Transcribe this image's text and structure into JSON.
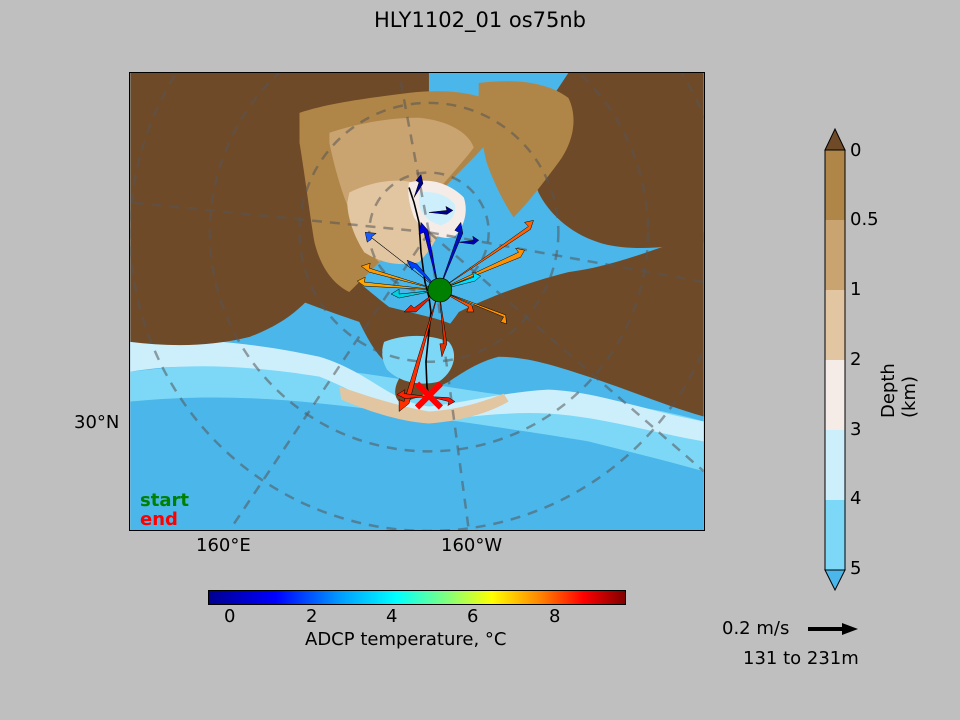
{
  "title": "HLY1102_01 os75nb",
  "map": {
    "lat_label": "30°N",
    "lon_labels": [
      "160°E",
      "160°W"
    ],
    "start_label": "start",
    "end_label": "end",
    "start_marker": "green-circle",
    "end_marker": "red-x",
    "colors": {
      "deep_land": "#6f4a28",
      "land_mid": "#b08648",
      "land_light": "#c9a370",
      "land_pale": "#e2c6a1",
      "shelf": "#f5ece8",
      "shallow": "#cdeffc",
      "mid_ocean": "#7dd8f7",
      "deep_ocean": "#4ab6ea"
    }
  },
  "temperature_colorbar": {
    "label": "ADCP temperature, °C",
    "ticks": [
      "0",
      "2",
      "4",
      "6",
      "8"
    ],
    "range": [
      -0.5,
      9.5
    ]
  },
  "depth_colorbar": {
    "label": "Depth (km)",
    "ticks": [
      "0",
      "0.5",
      "1",
      "2",
      "3",
      "4",
      "5"
    ],
    "colors": [
      "#b08648",
      "#c9a370",
      "#e2c6a1",
      "#f5ece8",
      "#cdeffc",
      "#7dd8f7",
      "#4ab6ea"
    ]
  },
  "scale": {
    "speed_label": "0.2 m/s",
    "depth_range_label": "131 to 231m"
  }
}
